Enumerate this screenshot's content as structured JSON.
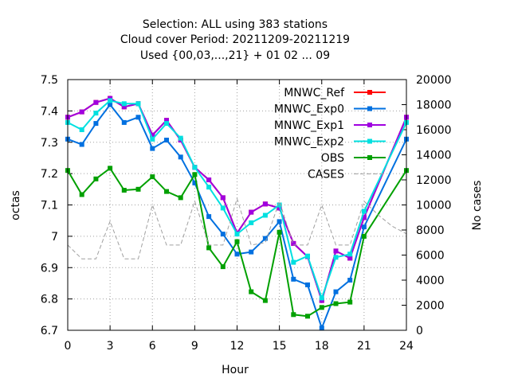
{
  "chart_data": {
    "type": "line",
    "title_lines": [
      "Selection: ALL using   383 stations",
      "Cloud cover   Period: 20211209-20211219",
      "Used {00,03,...,21} + 01 02 ... 09"
    ],
    "xlabel": "Hour",
    "ylabel": "octas",
    "y2label": "No cases",
    "xlim": [
      0,
      24
    ],
    "ylim": [
      6.7,
      7.5
    ],
    "y2lim": [
      0,
      20000
    ],
    "xticks": [
      0,
      3,
      6,
      9,
      12,
      15,
      18,
      21,
      24
    ],
    "yticks": [
      6.7,
      6.8,
      6.9,
      7,
      7.1,
      7.2,
      7.3,
      7.4,
      7.5
    ],
    "ytick_labels": [
      "6.7",
      "6.8",
      "6.9",
      "7",
      "7.1",
      "7.2",
      "7.3",
      "7.4",
      "7.5"
    ],
    "y2ticks": [
      0,
      2000,
      4000,
      6000,
      8000,
      10000,
      12000,
      14000,
      16000,
      18000,
      20000
    ],
    "grid": true,
    "legend_position": "top-right",
    "series": [
      {
        "name": "MNWC_Ref",
        "color": "#ff0000",
        "axis": "left",
        "x": [
          0,
          1,
          2,
          3,
          4,
          5,
          6,
          7,
          8,
          9,
          10,
          11,
          12,
          13,
          14,
          15,
          16,
          17,
          18,
          19,
          20,
          21,
          24
        ],
        "y": [
          7.38,
          7.397,
          7.427,
          7.44,
          7.413,
          7.423,
          7.323,
          7.37,
          7.307,
          7.22,
          7.18,
          7.123,
          7.01,
          7.077,
          7.103,
          7.09,
          6.977,
          6.935,
          6.795,
          6.953,
          6.93,
          7.06,
          7.38
        ]
      },
      {
        "name": "MNWC_Exp0",
        "color": "#0070e0",
        "axis": "left",
        "x": [
          0,
          1,
          2,
          3,
          4,
          5,
          6,
          7,
          8,
          9,
          10,
          11,
          12,
          13,
          14,
          15,
          16,
          17,
          18,
          19,
          20,
          21,
          24
        ],
        "y": [
          7.31,
          7.293,
          7.36,
          7.42,
          7.363,
          7.38,
          7.28,
          7.307,
          7.253,
          7.17,
          7.063,
          7.007,
          6.943,
          6.95,
          6.993,
          7.047,
          6.863,
          6.845,
          6.707,
          6.823,
          6.86,
          7.03,
          7.31
        ]
      },
      {
        "name": "MNWC_Exp1",
        "color": "#a000e0",
        "axis": "left",
        "x": [
          0,
          1,
          2,
          3,
          4,
          5,
          6,
          7,
          8,
          9,
          10,
          11,
          12,
          13,
          14,
          15,
          16,
          17,
          18,
          19,
          20,
          21,
          24
        ],
        "y": [
          7.38,
          7.397,
          7.427,
          7.44,
          7.413,
          7.423,
          7.323,
          7.37,
          7.307,
          7.22,
          7.18,
          7.123,
          7.01,
          7.077,
          7.103,
          7.09,
          6.977,
          6.935,
          6.795,
          6.953,
          6.93,
          7.06,
          7.38
        ]
      },
      {
        "name": "MNWC_Exp2",
        "color": "#00e0e0",
        "axis": "left",
        "x": [
          0,
          1,
          2,
          3,
          4,
          5,
          6,
          7,
          8,
          9,
          10,
          11,
          12,
          13,
          14,
          15,
          16,
          17,
          18,
          19,
          20,
          21,
          24
        ],
        "y": [
          7.363,
          7.34,
          7.393,
          7.433,
          7.423,
          7.423,
          7.31,
          7.36,
          7.313,
          7.22,
          7.157,
          7.09,
          7.007,
          7.043,
          7.067,
          7.1,
          6.917,
          6.937,
          6.803,
          6.933,
          6.943,
          7.08,
          7.363
        ]
      },
      {
        "name": "OBS",
        "color": "#00a000",
        "axis": "left",
        "x": [
          0,
          1,
          2,
          3,
          4,
          5,
          6,
          7,
          8,
          9,
          10,
          11,
          12,
          13,
          14,
          15,
          16,
          17,
          18,
          19,
          20,
          21,
          24
        ],
        "y": [
          7.21,
          7.133,
          7.183,
          7.217,
          7.147,
          7.15,
          7.19,
          7.143,
          7.123,
          7.197,
          6.963,
          6.903,
          6.983,
          6.823,
          6.795,
          7.013,
          6.75,
          6.745,
          6.773,
          6.785,
          6.79,
          7.0,
          7.21
        ]
      },
      {
        "name": "CASES",
        "color": "#a0a0a0",
        "axis": "right",
        "dashed": true,
        "x": [
          0,
          1,
          2,
          3,
          4,
          5,
          6,
          7,
          8,
          9,
          10,
          11,
          12,
          13,
          14,
          15,
          16,
          17,
          18,
          19,
          20,
          21,
          22,
          23,
          24
        ],
        "y": [
          6800,
          5700,
          5700,
          8700,
          5700,
          5700,
          10000,
          6800,
          6800,
          10300,
          6800,
          6800,
          10500,
          6800,
          7000,
          10300,
          6800,
          6800,
          10000,
          6800,
          6800,
          10300,
          9200,
          8300,
          7700
        ]
      }
    ]
  }
}
